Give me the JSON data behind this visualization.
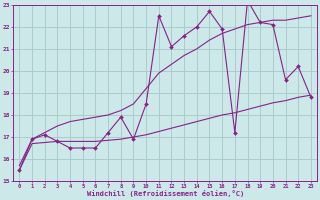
{
  "xlabel": "Windchill (Refroidissement éolien,°C)",
  "bg_color": "#cce8e8",
  "grid_color": "#aacccc",
  "line_color": "#882288",
  "xlim": [
    -0.5,
    23.5
  ],
  "ylim": [
    15,
    23
  ],
  "xticks": [
    0,
    1,
    2,
    3,
    4,
    5,
    6,
    7,
    8,
    9,
    10,
    11,
    12,
    13,
    14,
    15,
    16,
    17,
    18,
    19,
    20,
    21,
    22,
    23
  ],
  "yticks": [
    15,
    16,
    17,
    18,
    19,
    20,
    21,
    22,
    23
  ],
  "x_main": [
    0,
    1,
    2,
    3,
    4,
    5,
    6,
    7,
    8,
    9,
    10,
    11,
    12,
    13,
    14,
    15,
    16,
    17,
    18,
    19,
    20,
    21,
    22,
    23
  ],
  "y_main": [
    15.5,
    16.9,
    17.1,
    16.8,
    16.5,
    16.5,
    16.5,
    17.2,
    17.9,
    16.9,
    18.5,
    22.5,
    21.1,
    21.6,
    22.0,
    22.7,
    21.9,
    17.2,
    23.2,
    22.2,
    22.1,
    19.6,
    20.2,
    18.8
  ],
  "x_upper": [
    0,
    1,
    2,
    3,
    4,
    5,
    6,
    7,
    8,
    9,
    10,
    11,
    12,
    13,
    14,
    15,
    16,
    17,
    18,
    19,
    20,
    21,
    22,
    23
  ],
  "y_upper": [
    15.7,
    16.9,
    17.2,
    17.5,
    17.7,
    17.8,
    17.9,
    18.0,
    18.2,
    18.5,
    19.2,
    19.9,
    20.3,
    20.7,
    21.0,
    21.4,
    21.7,
    21.9,
    22.1,
    22.2,
    22.3,
    22.3,
    22.4,
    22.5
  ],
  "x_lower": [
    0,
    1,
    2,
    3,
    4,
    5,
    6,
    7,
    8,
    9,
    10,
    11,
    12,
    13,
    14,
    15,
    16,
    17,
    18,
    19,
    20,
    21,
    22,
    23
  ],
  "y_lower": [
    15.5,
    16.7,
    16.75,
    16.8,
    16.8,
    16.8,
    16.8,
    16.85,
    16.9,
    17.0,
    17.1,
    17.25,
    17.4,
    17.55,
    17.7,
    17.85,
    18.0,
    18.1,
    18.25,
    18.4,
    18.55,
    18.65,
    18.8,
    18.9
  ]
}
